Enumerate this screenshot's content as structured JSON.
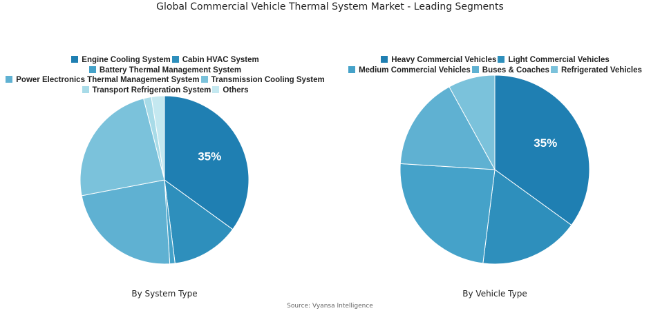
{
  "title": "Global Commercial Vehicle Thermal System Market - Leading Segments",
  "source": "Source: Vyansa Intelligence",
  "chart_data": [
    {
      "type": "pie",
      "caption": "By System Type",
      "start_angle_deg": 0,
      "direction": "clockwise",
      "labels": [
        "Engine Cooling System",
        "Cabin HVAC System",
        "Battery Thermal Management System",
        "Power Electronics Thermal Management System",
        "Transmission Cooling System",
        "Transport Refrigeration System",
        "Others"
      ],
      "values": [
        35,
        13,
        1,
        23,
        24,
        1.5,
        2.5
      ],
      "colors": [
        "#1f7fb2",
        "#2e8fbc",
        "#45a2c9",
        "#5fb1d2",
        "#7bc2db",
        "#a8dbe8",
        "#c4e8f0"
      ],
      "data_labels": [
        "35%",
        "",
        "",
        "",
        "",
        "",
        ""
      ],
      "legend_rows": [
        [
          0,
          1
        ],
        [
          2
        ],
        [
          3,
          4
        ],
        [
          5,
          6
        ]
      ]
    },
    {
      "type": "pie",
      "caption": "By Vehicle Type",
      "start_angle_deg": 0,
      "direction": "clockwise",
      "labels": [
        "Heavy Commercial Vehicles",
        "Light Commercial Vehicles",
        "Medium Commercial Vehicles",
        "Buses & Coaches",
        "Refrigerated Vehicles"
      ],
      "values": [
        35,
        17,
        24,
        16,
        8
      ],
      "colors": [
        "#1f7fb2",
        "#2e8fbc",
        "#45a2c9",
        "#5fb1d2",
        "#7bc2db"
      ],
      "data_labels": [
        "35%",
        "",
        "",
        "",
        ""
      ],
      "legend_rows": [
        [
          0,
          1
        ],
        [
          2,
          3,
          4
        ]
      ]
    }
  ]
}
